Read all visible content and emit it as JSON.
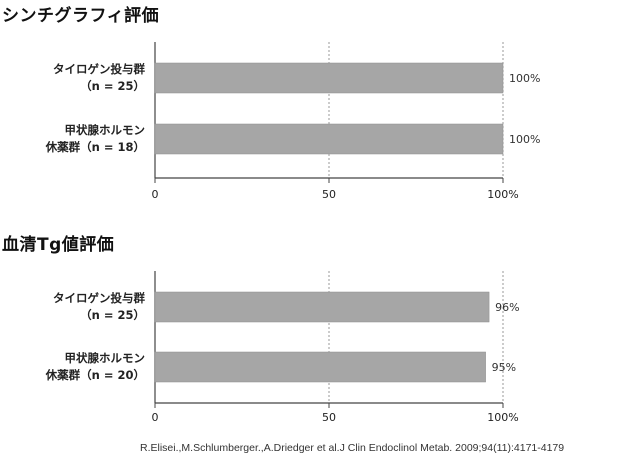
{
  "sections": [
    {
      "title": "シンチグラフィ評価"
    },
    {
      "title": "血清Tg値評価"
    }
  ],
  "chart_data": [
    {
      "type": "bar",
      "orientation": "horizontal",
      "title": "シンチグラフィ評価",
      "categories": [
        [
          "タイロゲン投与群",
          "（n = 25）"
        ],
        [
          "甲状腺ホルモン",
          "休薬群（n = 18）"
        ]
      ],
      "values": [
        100,
        100
      ],
      "value_labels": [
        "100%",
        "100%"
      ],
      "xlim": [
        0,
        100
      ],
      "xticks": [
        "0",
        "50",
        "100%"
      ],
      "grid": "vertical dashed at 50 and 100",
      "bar_color": "#a6a6a6"
    },
    {
      "type": "bar",
      "orientation": "horizontal",
      "title": "血清Tg値評価",
      "categories": [
        [
          "タイロゲン投与群",
          "（n = 25）"
        ],
        [
          "甲状腺ホルモン",
          "休薬群（n = 20）"
        ]
      ],
      "values": [
        96,
        95
      ],
      "value_labels": [
        "96%",
        "95%"
      ],
      "xlim": [
        0,
        100
      ],
      "xticks": [
        "0",
        "50",
        "100%"
      ],
      "grid": "vertical dashed at 50 and 100",
      "bar_color": "#a6a6a6"
    }
  ],
  "citation": "R.Elisei.,M.Schlumberger.,A.Driedger et al.J Clin Endoclinol Metab. 2009;94(11):4171-4179"
}
